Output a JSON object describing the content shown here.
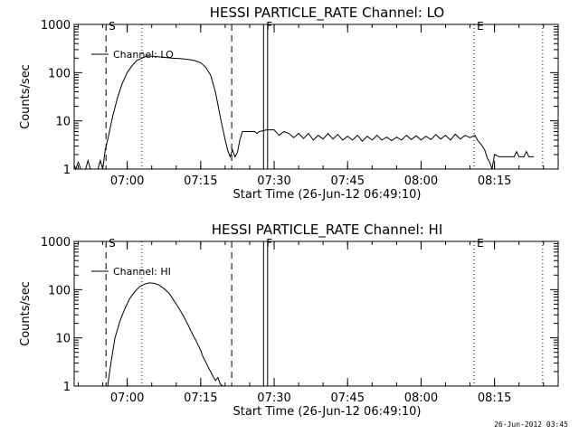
{
  "footer": {
    "timestamp": "26-Jun-2012 03:45"
  },
  "chart_data": [
    {
      "type": "line",
      "title": "HESSI PARTICLE_RATE Channel: LO",
      "xlabel": "Start Time (26-Jun-12 06:49:10)",
      "ylabel": "Counts/sec",
      "yscale": "log",
      "xlim": [
        "06:49:10",
        "08:28:00"
      ],
      "ylim": [
        1,
        1000
      ],
      "xticks": [
        "07:00",
        "07:15",
        "07:30",
        "07:45",
        "08:00",
        "08:15"
      ],
      "yticks": [
        "1",
        "10",
        "100",
        "1000"
      ],
      "legend": {
        "label": "Channel: LO",
        "placement": "top-left"
      },
      "markers": [
        {
          "label": "S",
          "time": "06:55:40",
          "style": "dashed"
        },
        {
          "label": "",
          "time": "07:03:00",
          "style": "dotted"
        },
        {
          "label": "",
          "time": "07:21:20",
          "style": "dashed"
        },
        {
          "label": "F",
          "time": "07:27:50",
          "style": "solid"
        },
        {
          "label": "",
          "time": "07:28:40",
          "style": "solid"
        },
        {
          "label": "E",
          "time": "08:10:50",
          "style": "dotted"
        },
        {
          "label": "",
          "time": "08:24:50",
          "style": "dotted"
        }
      ],
      "series": [
        {
          "name": "Channel: LO",
          "points": [
            [
              "06:49:10",
              1.2
            ],
            [
              "06:49:30",
              1
            ],
            [
              "06:50:00",
              1.4
            ],
            [
              "06:50:30",
              1
            ],
            [
              "06:51:30",
              1
            ],
            [
              "06:52:00",
              1.5
            ],
            [
              "06:52:30",
              1
            ],
            [
              "06:54:00",
              1
            ],
            [
              "06:54:30",
              1.5
            ],
            [
              "06:55:00",
              1
            ],
            [
              "06:55:30",
              2.5
            ],
            [
              "06:56:00",
              4
            ],
            [
              "06:57:00",
              12
            ],
            [
              "06:58:00",
              30
            ],
            [
              "06:59:00",
              60
            ],
            [
              "07:00:00",
              100
            ],
            [
              "07:01:00",
              140
            ],
            [
              "07:02:00",
              180
            ],
            [
              "07:03:00",
              200
            ],
            [
              "07:04:00",
              220
            ],
            [
              "07:05:00",
              220
            ],
            [
              "07:07:00",
              210
            ],
            [
              "07:09:00",
              200
            ],
            [
              "07:11:00",
              195
            ],
            [
              "07:13:00",
              185
            ],
            [
              "07:14:00",
              175
            ],
            [
              "07:15:00",
              160
            ],
            [
              "07:16:00",
              130
            ],
            [
              "07:17:00",
              90
            ],
            [
              "07:18:00",
              40
            ],
            [
              "07:19:00",
              12
            ],
            [
              "07:20:00",
              4
            ],
            [
              "07:20:30",
              2.5
            ],
            [
              "07:21:00",
              1.8
            ],
            [
              "07:21:30",
              2.5
            ],
            [
              "07:22:00",
              1.8
            ],
            [
              "07:22:30",
              2.2
            ],
            [
              "07:23:00",
              4
            ],
            [
              "07:23:30",
              6
            ],
            [
              "07:26:00",
              6
            ],
            [
              "07:26:30",
              5.5
            ],
            [
              "07:27:00",
              6
            ],
            [
              "07:28:30",
              6.5
            ],
            [
              "07:30:00",
              6.5
            ],
            [
              "07:31:00",
              5
            ],
            [
              "07:32:00",
              6
            ],
            [
              "07:33:00",
              5.5
            ],
            [
              "07:34:00",
              4.5
            ],
            [
              "07:35:00",
              5.5
            ],
            [
              "07:36:00",
              4.3
            ],
            [
              "07:37:00",
              5.5
            ],
            [
              "07:38:00",
              4
            ],
            [
              "07:39:00",
              5
            ],
            [
              "07:40:00",
              4.2
            ],
            [
              "07:41:00",
              5.5
            ],
            [
              "07:42:00",
              4.2
            ],
            [
              "07:43:00",
              5.2
            ],
            [
              "07:44:00",
              4
            ],
            [
              "07:45:00",
              4.8
            ],
            [
              "07:46:00",
              4
            ],
            [
              "07:47:00",
              5
            ],
            [
              "07:48:00",
              3.8
            ],
            [
              "07:49:00",
              4.8
            ],
            [
              "07:50:00",
              4
            ],
            [
              "07:51:00",
              5
            ],
            [
              "07:52:00",
              4
            ],
            [
              "07:53:00",
              4.6
            ],
            [
              "07:54:00",
              3.9
            ],
            [
              "07:55:00",
              4.6
            ],
            [
              "07:56:00",
              4
            ],
            [
              "07:57:00",
              5
            ],
            [
              "07:58:00",
              4.1
            ],
            [
              "07:59:00",
              4.9
            ],
            [
              "08:00:00",
              4
            ],
            [
              "08:01:00",
              4.8
            ],
            [
              "08:02:00",
              4.1
            ],
            [
              "08:03:00",
              5.2
            ],
            [
              "08:04:00",
              4.2
            ],
            [
              "08:05:00",
              5
            ],
            [
              "08:06:00",
              4
            ],
            [
              "08:07:00",
              5.3
            ],
            [
              "08:08:00",
              4.2
            ],
            [
              "08:09:00",
              5
            ],
            [
              "08:10:00",
              4.5
            ],
            [
              "08:11:00",
              5
            ],
            [
              "08:11:30",
              4
            ],
            [
              "08:12:00",
              3.5
            ],
            [
              "08:12:30",
              3
            ],
            [
              "08:13:00",
              2.5
            ],
            [
              "08:13:30",
              1.7
            ],
            [
              "08:14:00",
              1.4
            ],
            [
              "08:14:30",
              1
            ],
            [
              "08:15:00",
              2
            ],
            [
              "08:16:00",
              1.8
            ],
            [
              "08:19:00",
              1.8
            ],
            [
              "08:19:30",
              2.3
            ],
            [
              "08:20:00",
              1.8
            ],
            [
              "08:21:00",
              1.8
            ],
            [
              "08:21:30",
              2.3
            ],
            [
              "08:22:00",
              1.8
            ],
            [
              "08:23:00",
              1.8
            ]
          ]
        }
      ]
    },
    {
      "type": "line",
      "title": "HESSI PARTICLE_RATE Channel: HI",
      "xlabel": "Start Time (26-Jun-12 06:49:10)",
      "ylabel": "Counts/sec",
      "yscale": "log",
      "xlim": [
        "06:49:10",
        "08:28:00"
      ],
      "ylim": [
        1,
        1000
      ],
      "xticks": [
        "07:00",
        "07:15",
        "07:30",
        "07:45",
        "08:00",
        "08:15"
      ],
      "yticks": [
        "1",
        "10",
        "100",
        "1000"
      ],
      "legend": {
        "label": "Channel: HI",
        "placement": "top-left"
      },
      "markers": [
        {
          "label": "S",
          "time": "06:55:40",
          "style": "dashed"
        },
        {
          "label": "",
          "time": "07:03:00",
          "style": "dotted"
        },
        {
          "label": "",
          "time": "07:21:20",
          "style": "dashed"
        },
        {
          "label": "F",
          "time": "07:27:50",
          "style": "solid"
        },
        {
          "label": "",
          "time": "07:28:40",
          "style": "solid"
        },
        {
          "label": "E",
          "time": "08:10:50",
          "style": "dotted"
        },
        {
          "label": "",
          "time": "08:24:50",
          "style": "dotted"
        }
      ],
      "series": [
        {
          "name": "Channel: HI",
          "points": [
            [
              "06:56:00",
              1
            ],
            [
              "06:56:40",
              3
            ],
            [
              "06:57:30",
              10
            ],
            [
              "06:58:30",
              22
            ],
            [
              "06:59:30",
              40
            ],
            [
              "07:00:30",
              65
            ],
            [
              "07:01:30",
              90
            ],
            [
              "07:02:30",
              115
            ],
            [
              "07:03:30",
              130
            ],
            [
              "07:04:30",
              138
            ],
            [
              "07:05:30",
              135
            ],
            [
              "07:06:30",
              125
            ],
            [
              "07:07:30",
              105
            ],
            [
              "07:08:30",
              85
            ],
            [
              "07:09:30",
              60
            ],
            [
              "07:10:30",
              42
            ],
            [
              "07:11:30",
              28
            ],
            [
              "07:12:30",
              18
            ],
            [
              "07:13:30",
              11
            ],
            [
              "07:14:00",
              9
            ],
            [
              "07:14:30",
              7
            ],
            [
              "07:15:00",
              5.5
            ],
            [
              "07:15:30",
              4
            ],
            [
              "07:16:00",
              3.2
            ],
            [
              "07:16:30",
              2.5
            ],
            [
              "07:17:00",
              2
            ],
            [
              "07:17:30",
              1.6
            ],
            [
              "07:18:00",
              1.3
            ],
            [
              "07:18:30",
              1.5
            ],
            [
              "07:19:00",
              1.1
            ],
            [
              "07:19:30",
              1
            ]
          ]
        }
      ]
    }
  ]
}
